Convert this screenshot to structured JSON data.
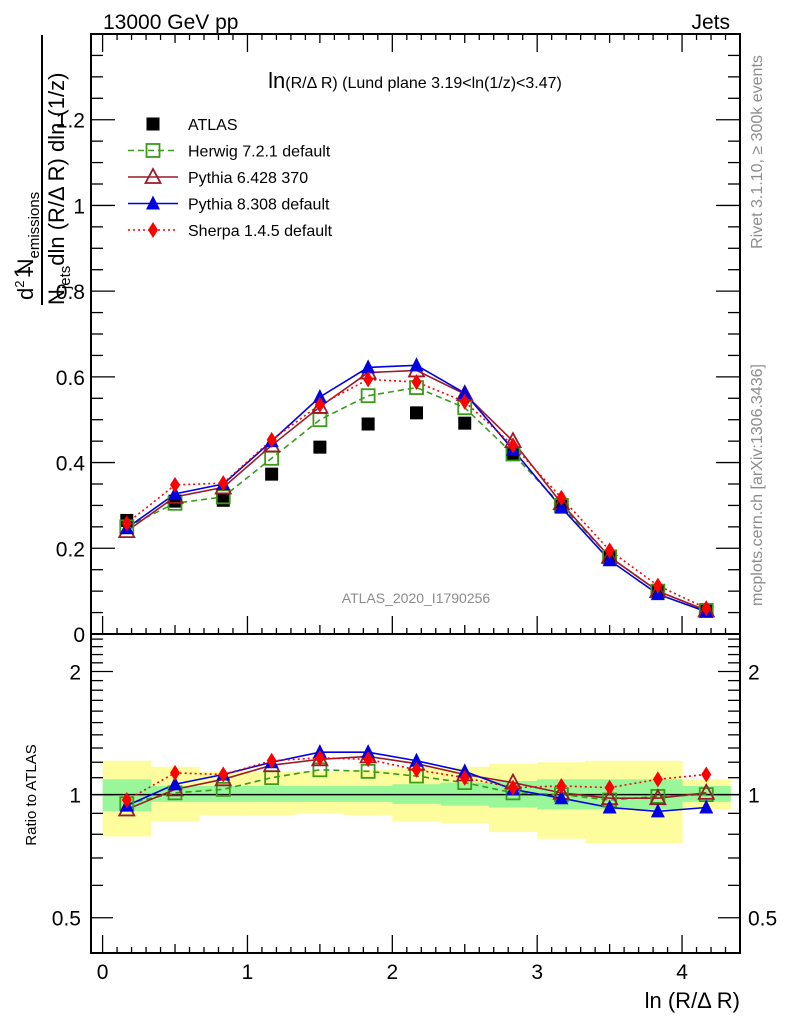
{
  "header": {
    "left": "13000 GeV pp",
    "right": "Jets"
  },
  "side_labels": {
    "rivet": "Rivet 3.1.10, ≥ 300k events",
    "mcplots": "mcplots.cern.ch [arXiv:1306.3436]"
  },
  "chart_data": [
    {
      "type": "line",
      "panel": "main",
      "title": "ln(R/Δ R) (Lund plane 3.19<ln(1/z)<3.47)",
      "title_parts": {
        "prefix": "ln",
        "rest": "(R/Δ R) (Lund plane 3.19<ln(1/z)<3.47)"
      },
      "xlabel": "ln (R/Δ R)",
      "ylabel": "1/N_jets d²N_emissions / dln(R/Δ R) dln(1/z)",
      "ylabel_parts": {
        "num_one": "1",
        "njets": "N",
        "njets_sub": "jets",
        "den_rest": "dln (R/Δ R) dln (1/z)",
        "d2": "d",
        "d2_sup": "2",
        "nem": " N",
        "nem_sub": "emissions"
      },
      "xlim": [
        -0.08,
        4.4
      ],
      "ylim": [
        0,
        1.4
      ],
      "yticks": [
        0,
        0.2,
        0.4,
        0.6,
        0.8,
        1,
        1.2
      ],
      "ytick_labels": [
        "0",
        "0.2",
        "0.4",
        "0.6",
        "0.8",
        "1",
        "1.2"
      ],
      "watermark": "ATLAS_2020_I1790256",
      "legend_position": "top-left",
      "x": [
        0.167,
        0.5,
        0.833,
        1.167,
        1.5,
        1.833,
        2.167,
        2.5,
        2.833,
        3.167,
        3.5,
        3.833,
        4.167
      ],
      "series": [
        {
          "name": "ATLAS",
          "color": "#000000",
          "marker": "filled-square",
          "line": "none",
          "values": [
            0.265,
            0.31,
            0.312,
            0.373,
            0.436,
            0.49,
            0.516,
            0.492,
            0.42,
            0.3,
            0.18,
            0.1,
            0.055
          ]
        },
        {
          "name": "Herwig 7.2.1 default",
          "color": "#3a9a1a",
          "marker": "open-square",
          "line": "dashed",
          "values": [
            0.25,
            0.305,
            0.32,
            0.41,
            0.5,
            0.556,
            0.575,
            0.528,
            0.42,
            0.3,
            0.18,
            0.1,
            0.055
          ]
        },
        {
          "name": "Pythia 6.428 370",
          "color": "#9a1a2a",
          "marker": "open-triangle",
          "line": "solid",
          "values": [
            0.24,
            0.32,
            0.342,
            0.44,
            0.53,
            0.61,
            0.615,
            0.56,
            0.45,
            0.305,
            0.18,
            0.1,
            0.055
          ]
        },
        {
          "name": "Pythia 8.308 default",
          "color": "#0000e0",
          "marker": "filled-triangle",
          "line": "solid",
          "values": [
            0.247,
            0.327,
            0.35,
            0.45,
            0.553,
            0.622,
            0.627,
            0.562,
            0.43,
            0.295,
            0.172,
            0.093,
            0.052
          ]
        },
        {
          "name": "Sherpa 1.4.5 default",
          "color": "#ff0000",
          "marker": "filled-diamond",
          "line": "dotted",
          "values": [
            0.258,
            0.348,
            0.352,
            0.453,
            0.535,
            0.594,
            0.588,
            0.542,
            0.44,
            0.318,
            0.195,
            0.113,
            0.06
          ]
        }
      ]
    },
    {
      "type": "line",
      "panel": "ratio",
      "ylabel": "Ratio to ATLAS",
      "xlabel": "ln (R/Δ R)",
      "yscale": "log",
      "xlim": [
        -0.08,
        4.4
      ],
      "ylim": [
        0.41,
        2.47
      ],
      "yticks": [
        0.5,
        1,
        2
      ],
      "ytick_labels": [
        "0.5",
        "1",
        "2"
      ],
      "xticks": [
        0,
        1,
        2,
        3,
        4
      ],
      "xtick_labels": [
        "0",
        "1",
        "2",
        "3",
        "4"
      ],
      "bin_edges": [
        0,
        0.333,
        0.667,
        1.0,
        1.333,
        1.667,
        2.0,
        2.333,
        2.667,
        3.0,
        3.333,
        3.667,
        4.0,
        4.333
      ],
      "band_inner": {
        "color": "#99f799",
        "low": [
          0.91,
          0.96,
          0.96,
          0.96,
          0.96,
          0.96,
          0.95,
          0.94,
          0.93,
          0.92,
          0.92,
          0.92,
          0.96
        ],
        "high": [
          1.09,
          1.05,
          1.05,
          1.05,
          1.05,
          1.05,
          1.06,
          1.07,
          1.08,
          1.09,
          1.09,
          1.09,
          1.05
        ]
      },
      "band_outer": {
        "color": "#fdfd9e",
        "low": [
          0.79,
          0.86,
          0.89,
          0.89,
          0.9,
          0.89,
          0.86,
          0.85,
          0.81,
          0.78,
          0.76,
          0.76,
          0.92
        ],
        "high": [
          1.21,
          1.17,
          1.14,
          1.14,
          1.14,
          1.15,
          1.16,
          1.17,
          1.19,
          1.2,
          1.21,
          1.21,
          1.09
        ]
      },
      "series": [
        {
          "name": "Herwig 7.2.1 default",
          "color": "#3a9a1a",
          "marker": "open-square",
          "line": "dashed",
          "values": [
            0.95,
            1.01,
            1.03,
            1.1,
            1.15,
            1.14,
            1.11,
            1.07,
            1.01,
            1.0,
            0.97,
            0.99,
            1.0
          ]
        },
        {
          "name": "Pythia 6.428 370",
          "color": "#9a1a2a",
          "marker": "open-triangle",
          "line": "solid",
          "values": [
            0.92,
            1.03,
            1.09,
            1.18,
            1.22,
            1.24,
            1.19,
            1.12,
            1.07,
            1.01,
            0.98,
            0.98,
            1.01
          ]
        },
        {
          "name": "Pythia 8.308 default",
          "color": "#0000e0",
          "marker": "filled-triangle",
          "line": "solid",
          "values": [
            0.94,
            1.06,
            1.12,
            1.2,
            1.27,
            1.27,
            1.21,
            1.14,
            1.03,
            0.98,
            0.93,
            0.91,
            0.93
          ]
        },
        {
          "name": "Sherpa 1.4.5 default",
          "color": "#ff0000",
          "marker": "filled-diamond",
          "line": "dotted",
          "values": [
            0.97,
            1.13,
            1.12,
            1.21,
            1.23,
            1.22,
            1.15,
            1.1,
            1.04,
            1.05,
            1.04,
            1.09,
            1.12
          ]
        }
      ],
      "reference_line": 1
    }
  ]
}
